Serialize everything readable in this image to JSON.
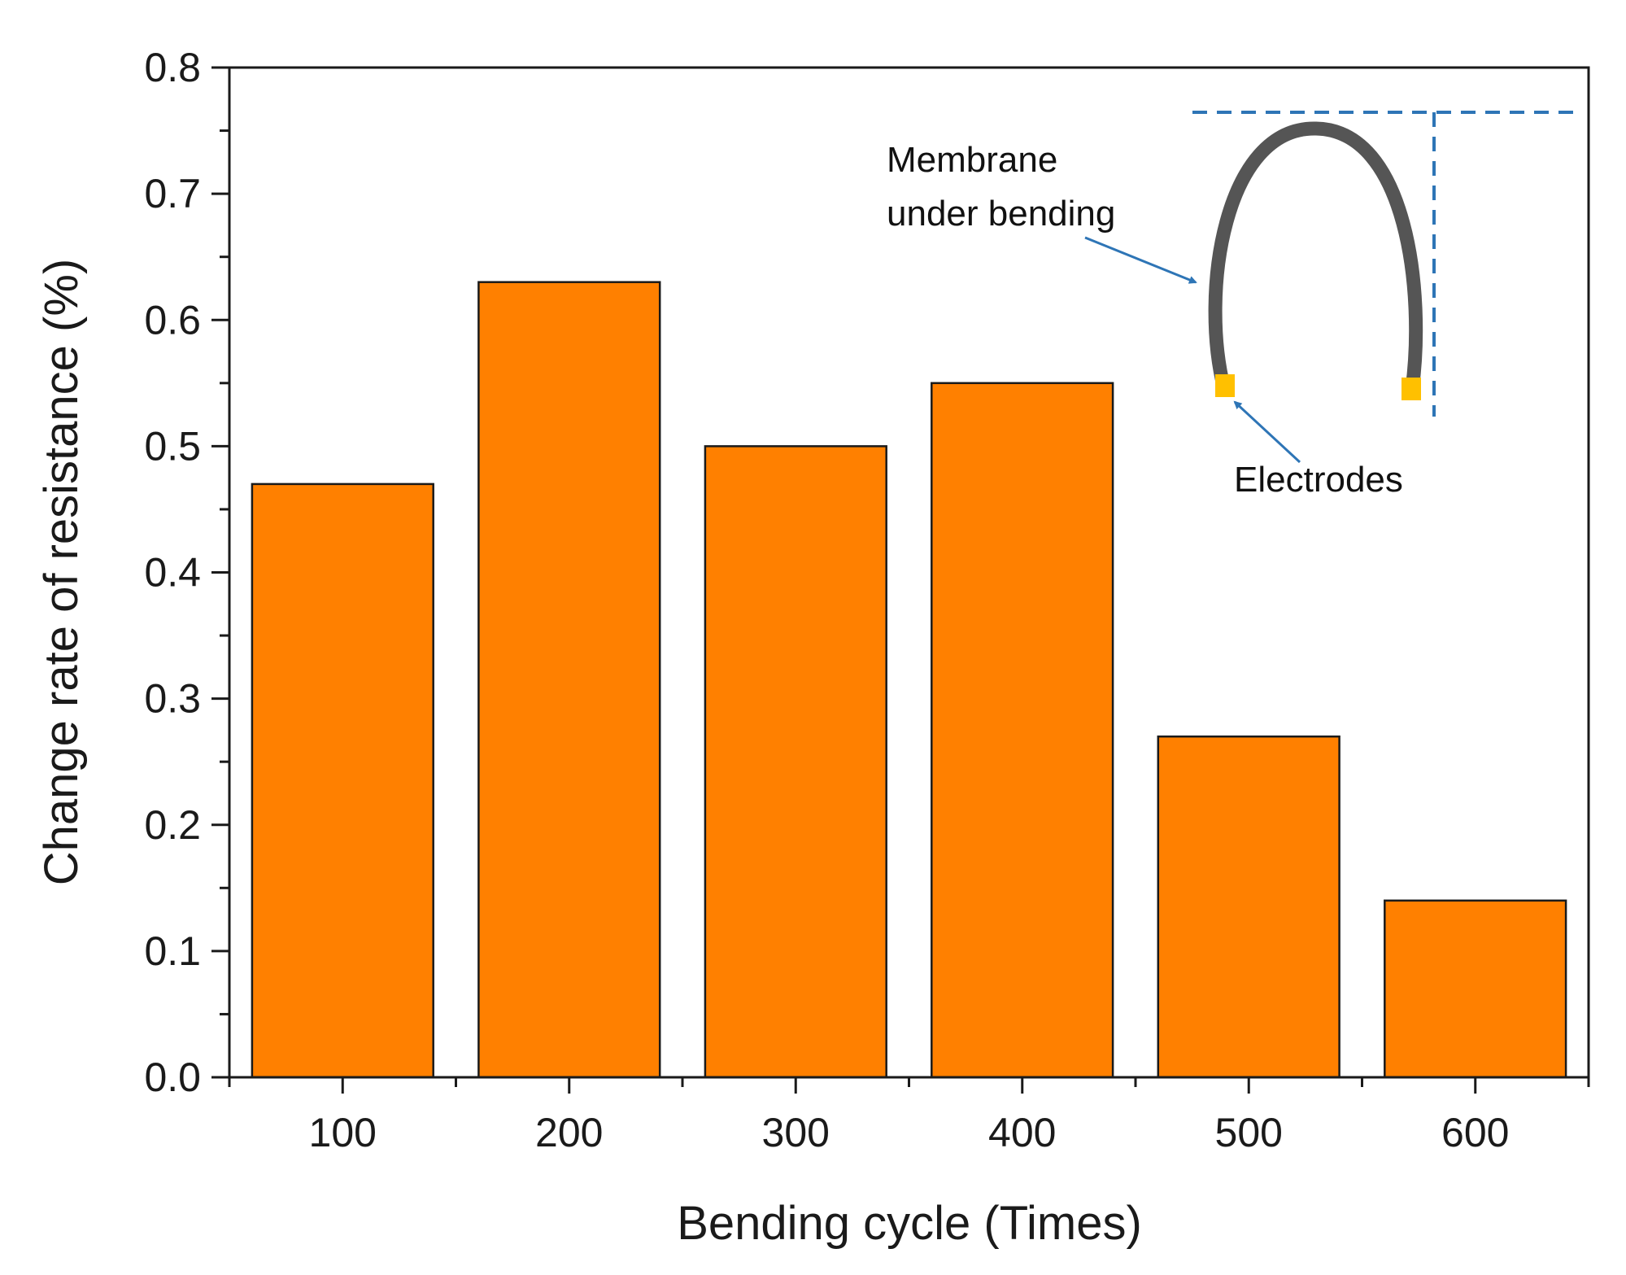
{
  "chart_data": {
    "type": "bar",
    "title": "",
    "xlabel": "Bending cycle (Times)",
    "ylabel": "Change rate of resistance (%)",
    "categories": [
      "100",
      "200",
      "300",
      "400",
      "500",
      "600"
    ],
    "values": [
      0.47,
      0.63,
      0.5,
      0.55,
      0.27,
      0.14
    ],
    "ylim": [
      0.0,
      0.8
    ],
    "yticks": [
      "0.0",
      "0.1",
      "0.2",
      "0.3",
      "0.4",
      "0.5",
      "0.6",
      "0.7",
      "0.8"
    ],
    "grid": false,
    "legend": "none",
    "bar_color": "#ff8000",
    "bar_edge_color": "#1a1a1a",
    "annotations": {
      "membrane_line1": "Membrane",
      "membrane_line2": "under bending",
      "electrodes": "Electrodes"
    },
    "inset_colors": {
      "membrane": "#555555",
      "electrode": "#ffc000",
      "arrow": "#2e75b6",
      "dashed": "#2e75b6"
    }
  }
}
